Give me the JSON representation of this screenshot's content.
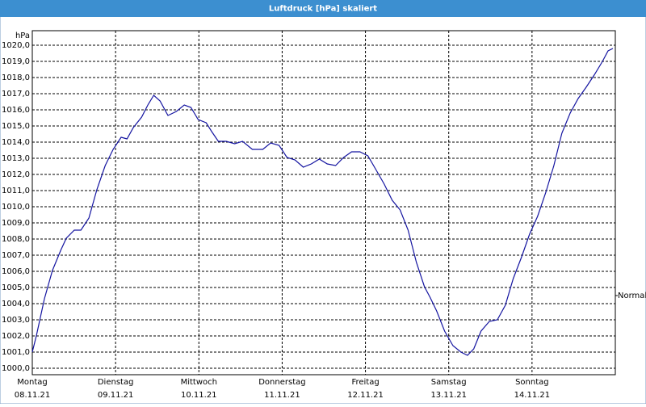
{
  "chart_data": {
    "type": "line",
    "title": "Luftdruck [hPa] skaliert",
    "y_unit": "hPa",
    "x": [
      0,
      1.2,
      3.5,
      5.8,
      8.2,
      9.8,
      12.1,
      14.0,
      16.3,
      18.6,
      21.0,
      23.3,
      25.6,
      27.3,
      29.1,
      31.5,
      33.3,
      35.0,
      36.8,
      39.1,
      41.5,
      43.8,
      45.7,
      47.8,
      50.1,
      51.7,
      53.6,
      55.9,
      58.3,
      60.6,
      63.4,
      66.4,
      68.7,
      71.1,
      73.4,
      75.7,
      78.1,
      80.4,
      82.7,
      85.0,
      87.4,
      89.7,
      92.0,
      94.4,
      96.7,
      99.0,
      101.4,
      103.7,
      106.0,
      108.3,
      110.7,
      113.0,
      114.6,
      116.5,
      118.8,
      121.2,
      123.5,
      125.4,
      127.2,
      129.3,
      131.7,
      134.0,
      136.3,
      138.6,
      141.0,
      143.3,
      145.6,
      148.0,
      150.3,
      152.6,
      155.0,
      157.3,
      159.6,
      161.9,
      164.3,
      165.9,
      167.3
    ],
    "series": [
      {
        "color": "#1414a0",
        "values": [
          1001.0,
          1002.05,
          1004.3,
          1006.05,
          1007.3,
          1008.05,
          1008.55,
          1008.55,
          1009.3,
          1011.05,
          1012.55,
          1013.55,
          1014.3,
          1014.2,
          1014.9,
          1015.55,
          1016.3,
          1016.9,
          1016.55,
          1015.65,
          1015.9,
          1016.3,
          1016.15,
          1015.4,
          1015.2,
          1014.65,
          1014.05,
          1014.05,
          1013.9,
          1014.05,
          1013.55,
          1013.55,
          1013.95,
          1013.8,
          1013.05,
          1012.9,
          1012.45,
          1012.65,
          1012.95,
          1012.65,
          1012.55,
          1013.05,
          1013.4,
          1013.4,
          1013.15,
          1012.3,
          1011.4,
          1010.4,
          1009.8,
          1008.55,
          1006.55,
          1005.05,
          1004.4,
          1003.55,
          1002.3,
          1001.4,
          1001.0,
          1000.8,
          1001.2,
          1002.3,
          1002.9,
          1003.0,
          1003.9,
          1005.55,
          1006.9,
          1008.3,
          1009.4,
          1010.9,
          1012.55,
          1014.55,
          1015.8,
          1016.7,
          1017.4,
          1018.15,
          1019.0,
          1019.65,
          1019.8
        ]
      }
    ],
    "xlim": [
      0,
      168
    ],
    "xticks": [
      {
        "value": 0,
        "label": "Montag",
        "date": "08.11.21"
      },
      {
        "value": 24,
        "label": "Dienstag",
        "date": "09.11.21"
      },
      {
        "value": 48,
        "label": "Mittwoch",
        "date": "10.11.21"
      },
      {
        "value": 72,
        "label": "Donnerstag",
        "date": "11.11.21"
      },
      {
        "value": 96,
        "label": "Freitag",
        "date": "12.11.21"
      },
      {
        "value": 120,
        "label": "Samstag",
        "date": "13.11.21"
      },
      {
        "value": 144,
        "label": "Sonntag",
        "date": "14.11.21"
      }
    ],
    "ylim": [
      999.6,
      1020.9
    ],
    "yticks": [
      {
        "value": 1000,
        "label": "1000,0"
      },
      {
        "value": 1001,
        "label": "1001,0"
      },
      {
        "value": 1002,
        "label": "1002,0"
      },
      {
        "value": 1003,
        "label": "1003,0"
      },
      {
        "value": 1004,
        "label": "1004,0"
      },
      {
        "value": 1005,
        "label": "1005,0"
      },
      {
        "value": 1006,
        "label": "1006,0"
      },
      {
        "value": 1007,
        "label": "1007,0"
      },
      {
        "value": 1008,
        "label": "1008,0"
      },
      {
        "value": 1009,
        "label": "1009,0"
      },
      {
        "value": 1010,
        "label": "1010,0"
      },
      {
        "value": 1011,
        "label": "1011,0"
      },
      {
        "value": 1012,
        "label": "1012,0"
      },
      {
        "value": 1013,
        "label": "1013,0"
      },
      {
        "value": 1014,
        "label": "1014,0"
      },
      {
        "value": 1015,
        "label": "1015,0"
      },
      {
        "value": 1016,
        "label": "1016,0"
      },
      {
        "value": 1017,
        "label": "1017,0"
      },
      {
        "value": 1018,
        "label": "1018,0"
      },
      {
        "value": 1019,
        "label": "1019,0"
      },
      {
        "value": 1020,
        "label": "1020,0"
      }
    ],
    "grid": true,
    "reference": {
      "text": "Normal",
      "value": 1004.5
    }
  }
}
